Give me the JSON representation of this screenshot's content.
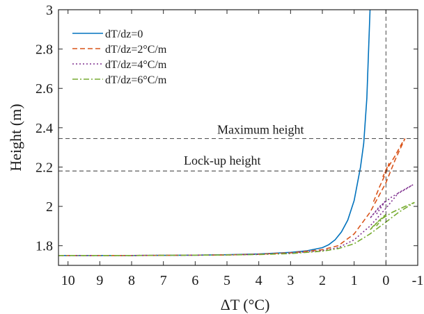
{
  "chart_data": {
    "type": "line",
    "xlabel": "ΔT (°C)",
    "ylabel": "Height (m)",
    "xlim": [
      10.3,
      -1
    ],
    "ylim": [
      1.7,
      3.0
    ],
    "x_reversed": true,
    "xticks": [
      10,
      9,
      8,
      7,
      6,
      5,
      4,
      3,
      2,
      1,
      0,
      -1
    ],
    "xtick_labels": [
      "10",
      "9",
      "8",
      "7",
      "6",
      "5",
      "4",
      "3",
      "2",
      "1",
      "0",
      "-1"
    ],
    "yticks": [
      1.8,
      2.0,
      2.2,
      2.4,
      2.6,
      2.8,
      3.0
    ],
    "ytick_labels": [
      "1.8",
      "2",
      "2.2",
      "2.4",
      "2.6",
      "2.8",
      "3"
    ],
    "grid": false,
    "legend_position": "top-left",
    "annotations": [
      {
        "text": "Maximum height",
        "y": 2.345
      },
      {
        "text": "Lock-up height",
        "y": 2.18
      }
    ],
    "reference_lines": {
      "horizontal": [
        2.345,
        2.18
      ],
      "vertical": [
        0
      ]
    },
    "series": [
      {
        "name": "dT/dz=0",
        "color": "#0072BD",
        "style": "solid",
        "points": [
          [
            10.3,
            1.75
          ],
          [
            8,
            1.75
          ],
          [
            6,
            1.752
          ],
          [
            5,
            1.754
          ],
          [
            4,
            1.758
          ],
          [
            3,
            1.766
          ],
          [
            2.5,
            1.774
          ],
          [
            2,
            1.79
          ],
          [
            1.8,
            1.805
          ],
          [
            1.6,
            1.83
          ],
          [
            1.4,
            1.87
          ],
          [
            1.2,
            1.93
          ],
          [
            1.0,
            2.03
          ],
          [
            0.8,
            2.2
          ],
          [
            0.7,
            2.32
          ],
          [
            0.6,
            2.55
          ],
          [
            0.5,
            3.0
          ]
        ]
      },
      {
        "name": "dT/dz=2°C/m",
        "color": "#D95319",
        "style": "dashed",
        "points": [
          [
            10.3,
            1.75
          ],
          [
            8,
            1.75
          ],
          [
            6,
            1.752
          ],
          [
            5,
            1.753
          ],
          [
            4,
            1.757
          ],
          [
            3,
            1.764
          ],
          [
            2,
            1.78
          ],
          [
            1.5,
            1.8
          ],
          [
            1,
            1.86
          ],
          [
            0.5,
            1.97
          ],
          [
            0,
            2.12
          ],
          [
            -0.3,
            2.24
          ],
          [
            -0.6,
            2.345
          ],
          [
            -0.5,
            2.32
          ],
          [
            -0.3,
            2.26
          ],
          [
            0,
            2.18
          ],
          [
            0.1,
            2.15
          ],
          [
            -0.1,
            2.22
          ],
          [
            0,
            2.17
          ],
          [
            0.2,
            2.1
          ],
          [
            0.4,
            2.02
          ]
        ]
      },
      {
        "name": "dT/dz=4°C/m",
        "color": "#7E2F8E",
        "style": "dotted",
        "points": [
          [
            10.3,
            1.75
          ],
          [
            8,
            1.75
          ],
          [
            6,
            1.752
          ],
          [
            5,
            1.753
          ],
          [
            4,
            1.756
          ],
          [
            3,
            1.762
          ],
          [
            2,
            1.775
          ],
          [
            1.5,
            1.79
          ],
          [
            1,
            1.83
          ],
          [
            0.5,
            1.9
          ],
          [
            0,
            1.99
          ],
          [
            -0.4,
            2.07
          ],
          [
            -0.85,
            2.11
          ],
          [
            -0.6,
            2.085
          ],
          [
            -0.2,
            2.05
          ],
          [
            0.2,
            2.0
          ],
          [
            0.5,
            1.94
          ],
          [
            0.4,
            1.96
          ],
          [
            0,
            2.03
          ],
          [
            0.3,
            1.96
          ]
        ]
      },
      {
        "name": "dT/dz=6°C/m",
        "color": "#77AC30",
        "style": "dashdot",
        "points": [
          [
            10.3,
            1.75
          ],
          [
            8,
            1.75
          ],
          [
            6,
            1.752
          ],
          [
            5,
            1.753
          ],
          [
            4,
            1.755
          ],
          [
            3,
            1.76
          ],
          [
            2,
            1.772
          ],
          [
            1.5,
            1.785
          ],
          [
            1,
            1.81
          ],
          [
            0.5,
            1.86
          ],
          [
            0,
            1.92
          ],
          [
            -0.4,
            1.97
          ],
          [
            -0.9,
            2.02
          ],
          [
            -0.6,
            2.0
          ],
          [
            -0.2,
            1.97
          ],
          [
            0.2,
            1.93
          ],
          [
            0.5,
            1.88
          ],
          [
            0.4,
            1.9
          ],
          [
            0,
            1.96
          ],
          [
            0.3,
            1.9
          ]
        ]
      }
    ]
  }
}
